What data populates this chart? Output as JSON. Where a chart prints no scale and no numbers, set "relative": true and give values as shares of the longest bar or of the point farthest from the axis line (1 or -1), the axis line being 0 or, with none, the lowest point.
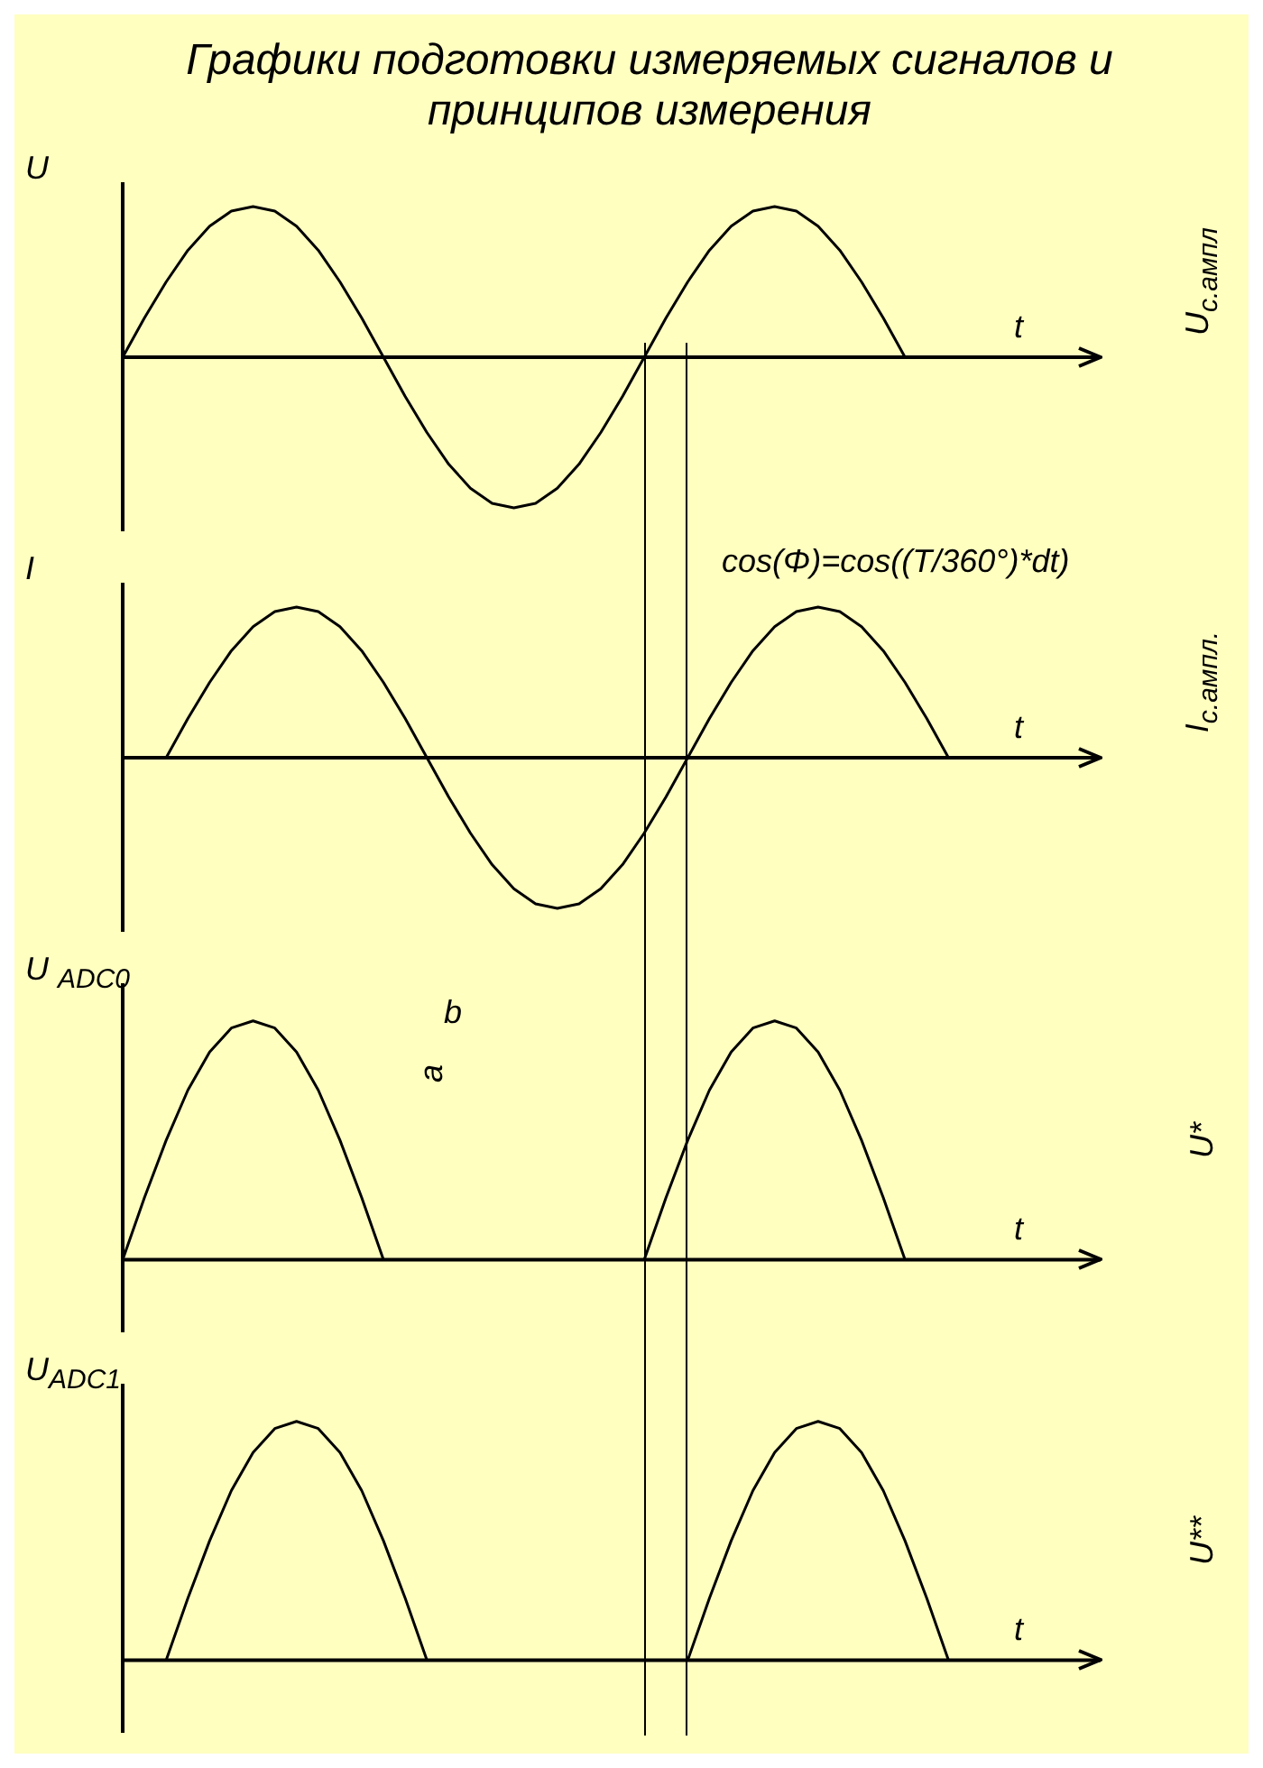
{
  "chart_data": [
    {
      "type": "line",
      "title": "Графики подготовки измеряемых сигналов и принципов измерения",
      "ylabel": "U",
      "xlabel": "t",
      "relative": true,
      "marker": "none",
      "categories": [
        null,
        null,
        null,
        null,
        null,
        null,
        null,
        null,
        null,
        null,
        null,
        null,
        null,
        null,
        null,
        null,
        null,
        null,
        null,
        null,
        null,
        null,
        null,
        null,
        null,
        null,
        null,
        null,
        null,
        null,
        null,
        null,
        null,
        null,
        null,
        null,
        null,
        null,
        null,
        null,
        null,
        null,
        null,
        null,
        null,
        null
      ],
      "series": [
        {
          "color": "#000000",
          "values": [
            0,
            0.26,
            0.5,
            0.71,
            0.87,
            0.97,
            1,
            0.97,
            0.87,
            0.71,
            0.5,
            0.26,
            0,
            -0.26,
            -0.5,
            -0.71,
            -0.87,
            -0.97,
            -1,
            -0.97,
            -0.87,
            -0.71,
            -0.5,
            -0.26,
            0,
            0.26,
            0.5,
            0.71,
            0.87,
            0.97,
            1,
            0.97,
            0.87,
            0.71,
            0.5,
            0.26,
            0,
            null,
            null,
            null,
            null,
            null,
            null,
            null,
            null,
            null
          ]
        }
      ],
      "annotations": [
        "U$_{с.ампл}$"
      ]
    },
    {
      "type": "line",
      "ylabel": "I",
      "xlabel": "t",
      "relative": true,
      "marker": "none",
      "categories": [
        null,
        null,
        null,
        null,
        null,
        null,
        null,
        null,
        null,
        null,
        null,
        null,
        null,
        null,
        null,
        null,
        null,
        null,
        null,
        null,
        null,
        null,
        null,
        null,
        null,
        null,
        null,
        null,
        null,
        null,
        null,
        null,
        null,
        null,
        null,
        null,
        null,
        null,
        null,
        null,
        null,
        null,
        null,
        null,
        null,
        null
      ],
      "series": [
        {
          "color": "#000000",
          "values": [
            null,
            null,
            0,
            0.26,
            0.5,
            0.71,
            0.87,
            0.97,
            1,
            0.97,
            0.87,
            0.71,
            0.5,
            0.26,
            0,
            -0.26,
            -0.5,
            -0.71,
            -0.87,
            -0.97,
            -1,
            -0.97,
            -0.87,
            -0.71,
            -0.5,
            -0.26,
            0,
            0.26,
            0.5,
            0.71,
            0.87,
            0.97,
            1,
            0.97,
            0.87,
            0.71,
            0.5,
            0.26,
            0,
            null,
            null,
            null,
            null,
            null,
            null,
            null
          ]
        }
      ],
      "annotations": [
        "cos(Φ)=cos((T/360°)*dt)",
        "I$_{с.ампл.}$"
      ]
    },
    {
      "type": "line",
      "ylabel": "U $_{ADC0}$",
      "xlabel": "t",
      "relative": true,
      "marker": "none",
      "categories": [
        null,
        null,
        null,
        null,
        null,
        null,
        null,
        null,
        null,
        null,
        null,
        null,
        null,
        null,
        null,
        null,
        null,
        null,
        null,
        null,
        null,
        null,
        null,
        null,
        null,
        null,
        null,
        null,
        null,
        null,
        null,
        null,
        null,
        null,
        null,
        null,
        null,
        null,
        null,
        null,
        null,
        null,
        null,
        null,
        null,
        null
      ],
      "series": [
        {
          "color": "#000000",
          "values": [
            0,
            0.26,
            0.5,
            0.71,
            0.87,
            0.97,
            1,
            0.97,
            0.87,
            0.71,
            0.5,
            0.26,
            0,
            0,
            0,
            0,
            0,
            0,
            0,
            0,
            0,
            0,
            0,
            0,
            0,
            0.26,
            0.5,
            0.71,
            0.87,
            0.97,
            1,
            0.97,
            0.87,
            0.71,
            0.5,
            0.26,
            0,
            null,
            null,
            null,
            null,
            null,
            null,
            null,
            null,
            null
          ]
        }
      ],
      "annotations": [
        "b",
        "a",
        "U*"
      ]
    },
    {
      "type": "line",
      "ylabel": "U$_{ADC1}$",
      "xlabel": "t",
      "relative": true,
      "marker": "none",
      "categories": [
        null,
        null,
        null,
        null,
        null,
        null,
        null,
        null,
        null,
        null,
        null,
        null,
        null,
        null,
        null,
        null,
        null,
        null,
        null,
        null,
        null,
        null,
        null,
        null,
        null,
        null,
        null,
        null,
        null,
        null,
        null,
        null,
        null,
        null,
        null,
        null,
        null,
        null,
        null,
        null,
        null,
        null,
        null,
        null,
        null,
        null
      ],
      "series": [
        {
          "color": "#000000",
          "values": [
            null,
            null,
            0,
            0.26,
            0.5,
            0.71,
            0.87,
            0.97,
            1,
            0.97,
            0.87,
            0.71,
            0.5,
            0.26,
            0,
            0,
            0,
            0,
            0,
            0,
            0,
            0,
            0,
            0,
            0,
            0,
            0,
            0.26,
            0.5,
            0.71,
            0.87,
            0.97,
            1,
            0.97,
            0.87,
            0.71,
            0.5,
            0.26,
            0,
            null,
            null,
            null,
            null,
            null,
            null,
            null
          ]
        }
      ],
      "annotations": [
        "U**"
      ]
    }
  ]
}
